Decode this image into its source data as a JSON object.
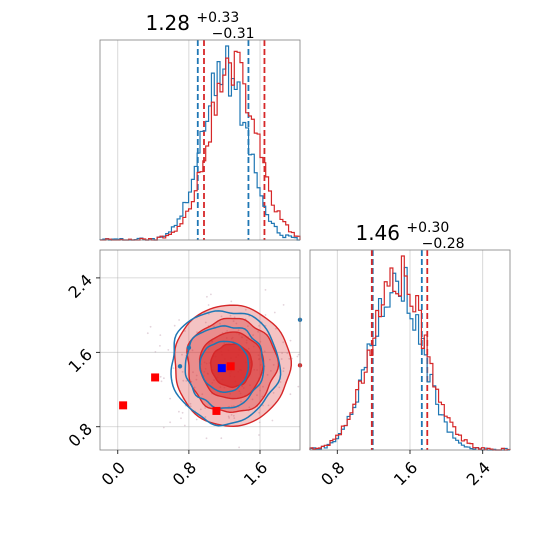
{
  "chart_data": {
    "type": "corner",
    "colors": {
      "blue": "#1f77b4",
      "red": "#d62728",
      "marker_blue": "#0000ff",
      "marker_red": "#ff0000"
    },
    "grid": true,
    "ranges": {
      "x0": [
        -0.2,
        2.05
      ],
      "x1": [
        0.5,
        2.7
      ]
    },
    "panels": [
      {
        "id": "hist-top",
        "type": "histogram",
        "title": {
          "value": "1.28",
          "plus": "+0.33",
          "minus": "−0.31"
        },
        "x_ticks": [
          0.0,
          0.8,
          1.6
        ],
        "quantiles": {
          "blue": [
            0.9,
            1.47
          ],
          "red": [
            0.97,
            1.65
          ]
        },
        "series": [
          {
            "name": "",
            "color": "#1f77b4",
            "mean": 1.2,
            "sd": 0.25,
            "noise_seed": 3
          },
          {
            "name": "",
            "color": "#d62728",
            "mean": 1.29,
            "sd": 0.27,
            "noise_seed": 11
          }
        ]
      },
      {
        "id": "scatter-contour",
        "type": "contour",
        "x_ticks": [
          0.0,
          0.8,
          1.6
        ],
        "x_tick_labels": [
          "0.0",
          "0.8",
          "1.6"
        ],
        "y_ticks": [
          0.8,
          1.6,
          2.4
        ],
        "y_tick_labels": [
          "0.8",
          "1.6",
          "2.4"
        ],
        "ylim": [
          0.55,
          2.7
        ],
        "blue_center": [
          1.2,
          1.45
        ],
        "red_center": [
          1.28,
          1.46
        ],
        "blue_marker": [
          1.17,
          1.43
        ],
        "red_markers": [
          [
            0.06,
            1.03
          ],
          [
            0.42,
            1.33
          ],
          [
            1.11,
            0.97
          ],
          [
            1.27,
            1.45
          ]
        ],
        "stray_points": [
          [
            2.05,
            1.95
          ],
          [
            2.05,
            1.46
          ],
          [
            0.8,
            1.65
          ],
          [
            0.7,
            1.45
          ]
        ]
      },
      {
        "id": "hist-right",
        "type": "histogram",
        "title": {
          "value": "1.46",
          "plus": "+0.30",
          "minus": "−0.28"
        },
        "x_ticks": [
          0.8,
          1.6,
          2.4
        ],
        "x_tick_labels": [
          "0.8",
          "1.6",
          "2.4"
        ],
        "quantiles": {
          "blue": [
            1.19,
            1.73
          ],
          "red": [
            1.18,
            1.79
          ]
        },
        "series": [
          {
            "name": "",
            "color": "#1f77b4",
            "mean": 1.45,
            "sd": 0.28,
            "noise_seed": 5
          },
          {
            "name": "",
            "color": "#d62728",
            "mean": 1.47,
            "sd": 0.3,
            "noise_seed": 17
          }
        ]
      }
    ]
  }
}
